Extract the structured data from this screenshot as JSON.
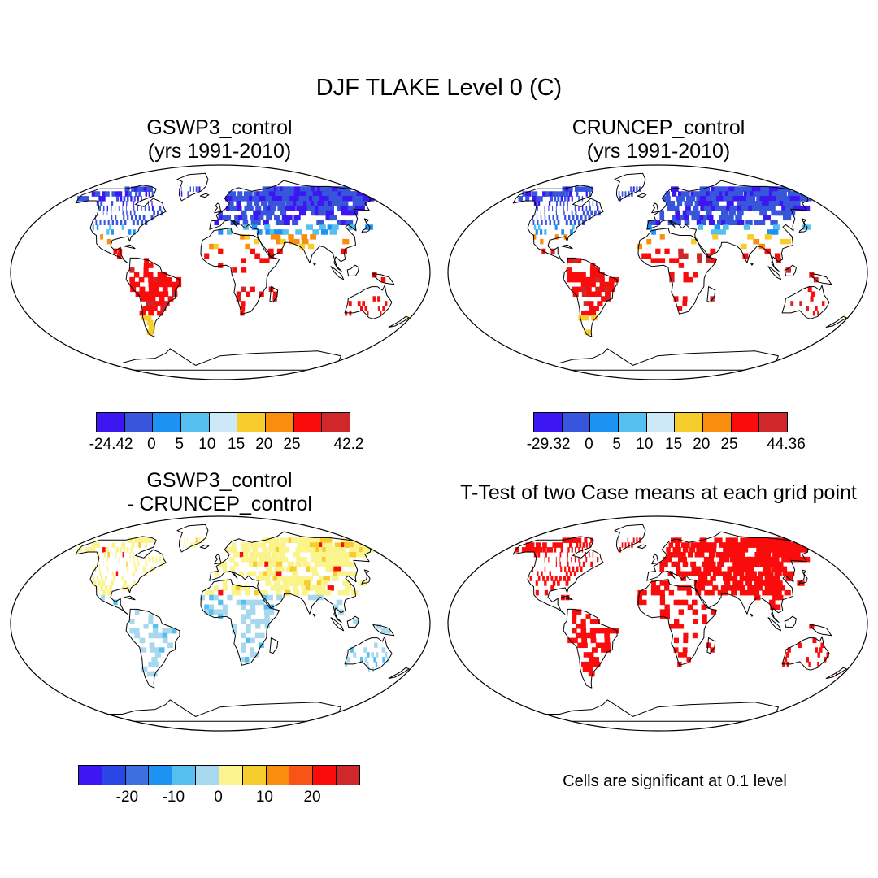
{
  "title": "DJF TLAKE Level 0 (C)",
  "panels": [
    {
      "title_line1": "GSWP3_control",
      "title_line2": "(yrs 1991-2010)",
      "kind": "abs"
    },
    {
      "title_line1": "CRUNCEP_control",
      "title_line2": "(yrs 1991-2010)",
      "kind": "abs"
    },
    {
      "title_line1": "GSWP3_control",
      "title_line2": "- CRUNCEP_control",
      "kind": "diff"
    },
    {
      "title_line1": "T-Test of two Case means at each grid point",
      "title_line2": "",
      "kind": "ttest"
    }
  ],
  "colorbars": [
    {
      "colors": [
        "#3d17f2",
        "#3856dc",
        "#1c93f2",
        "#55c0f0",
        "#cde9f7",
        "#f7cd2e",
        "#f98d0d",
        "#fb0c0c",
        "#d0272a"
      ],
      "labels": [
        "-24.42",
        "0",
        "5",
        "10",
        "15",
        "20",
        "25",
        "42.2"
      ]
    },
    {
      "colors": [
        "#3d17f2",
        "#3856dc",
        "#1c93f2",
        "#55c0f0",
        "#cde9f7",
        "#f7cd2e",
        "#f98d0d",
        "#fb0c0c",
        "#d0272a"
      ],
      "labels": [
        "-29.32",
        "0",
        "5",
        "10",
        "15",
        "20",
        "25",
        "44.36"
      ]
    },
    {
      "colors": [
        "#3d17f2",
        "#2a46e6",
        "#3c6fe0",
        "#1c93f2",
        "#55c0f0",
        "#a8d8ee",
        "#fbf48c",
        "#f7cd2e",
        "#f98d0d",
        "#f95418",
        "#fb0c0c",
        "#d0272a"
      ],
      "labels": [
        "-20",
        "-10",
        "0",
        "10",
        "20"
      ]
    }
  ],
  "significance_note": "Cells are significant at 0.1 level",
  "significance_color": "#fb0c0c"
}
